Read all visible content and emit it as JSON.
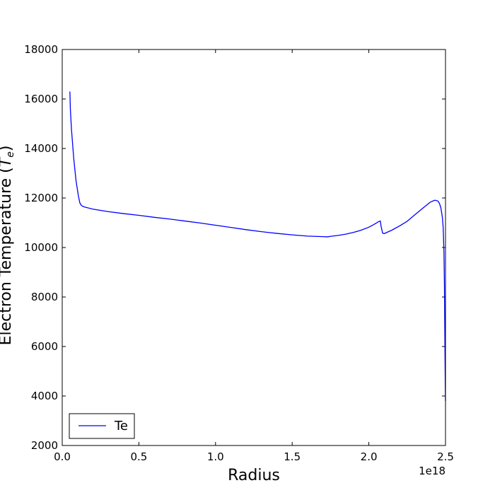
{
  "chart_data": {
    "type": "line",
    "xlabel": "Radius",
    "ylabel": "Electron Temperature (",
    "ylabel_math": "T",
    "ylabel_sub": "e",
    "ylabel_close": ")",
    "x_offset_label": "1e18",
    "xlim": [
      0.0,
      2.5
    ],
    "ylim": [
      2000,
      18000
    ],
    "x_ticks": [
      0.0,
      0.5,
      1.0,
      1.5,
      2.0,
      2.5
    ],
    "x_tick_labels": [
      "0.0",
      "0.5",
      "1.0",
      "1.5",
      "2.0",
      "2.5"
    ],
    "y_ticks": [
      2000,
      4000,
      6000,
      8000,
      10000,
      12000,
      14000,
      16000,
      18000
    ],
    "y_tick_labels": [
      "2000",
      "4000",
      "6000",
      "8000",
      "10000",
      "12000",
      "14000",
      "16000",
      "18000"
    ],
    "grid": false,
    "legend_position": "lower-left",
    "series": [
      {
        "name": "Te",
        "color": "#0000ff",
        "x": [
          0.05,
          0.053,
          0.06,
          0.075,
          0.09,
          0.105,
          0.115,
          0.125,
          0.135,
          0.15,
          0.2,
          0.3,
          0.4,
          0.5,
          0.6,
          0.7,
          0.8,
          0.9,
          1.0,
          1.1,
          1.2,
          1.3,
          1.4,
          1.5,
          1.6,
          1.7,
          1.73,
          1.75,
          1.8,
          1.85,
          1.9,
          1.95,
          2.0,
          2.03,
          2.05,
          2.065,
          2.075,
          2.08,
          2.09,
          2.1,
          2.15,
          2.2,
          2.25,
          2.3,
          2.35,
          2.4,
          2.43,
          2.45,
          2.46,
          2.47,
          2.48,
          2.485,
          2.49,
          2.493,
          2.495,
          2.497,
          2.499,
          2.5
        ],
        "y": [
          16300,
          15600,
          14800,
          13600,
          12700,
          12100,
          11800,
          11700,
          11660,
          11630,
          11550,
          11450,
          11370,
          11300,
          11220,
          11150,
          11070,
          10990,
          10900,
          10810,
          10720,
          10640,
          10570,
          10510,
          10460,
          10440,
          10430,
          10450,
          10490,
          10540,
          10610,
          10700,
          10820,
          10920,
          10990,
          11050,
          11070,
          10850,
          10580,
          10560,
          10700,
          10870,
          11060,
          11320,
          11580,
          11830,
          11910,
          11880,
          11790,
          11600,
          11200,
          10800,
          9800,
          8500,
          7000,
          5500,
          4200,
          3800
        ]
      }
    ]
  }
}
